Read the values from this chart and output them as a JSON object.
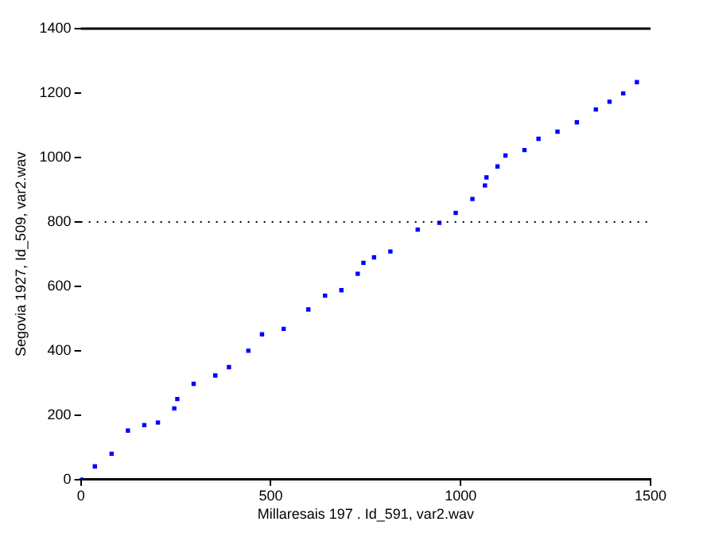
{
  "chart_data": {
    "type": "scatter",
    "xlabel": "Millaresais 197 . Id_591, var2.wav",
    "ylabel": "Segovia 1927, Id_509, var2.wav",
    "x": [
      0,
      37,
      81,
      124,
      167,
      203,
      246,
      254,
      297,
      354,
      390,
      441,
      477,
      534,
      599,
      643,
      686,
      729,
      744,
      772,
      815,
      887,
      944,
      987,
      1031,
      1064,
      1068,
      1097,
      1118,
      1168,
      1205,
      1255,
      1306,
      1356,
      1392,
      1428,
      1464
    ],
    "series": [
      {
        "color": "#0000ff",
        "values": [
          0,
          41,
          80,
          152,
          169,
          177,
          221,
          250,
          297,
          323,
          349,
          400,
          451,
          468,
          528,
          571,
          588,
          639,
          673,
          690,
          708,
          776,
          797,
          828,
          871,
          913,
          938,
          972,
          1006,
          1023,
          1058,
          1080,
          1109,
          1149,
          1173,
          1199,
          1234
        ]
      }
    ],
    "xlim": [
      0,
      1500
    ],
    "xticks": [
      0,
      500,
      1000,
      1500
    ],
    "ylim": [
      0,
      1400
    ],
    "yticks": [
      0,
      200,
      400,
      600,
      800,
      1000,
      1200,
      1400
    ],
    "ref_lines": [
      {
        "axis": "y",
        "value": 800,
        "line_style": "dotted",
        "color": "#000000"
      }
    ],
    "grid": false,
    "legend": false,
    "marker": "square"
  }
}
